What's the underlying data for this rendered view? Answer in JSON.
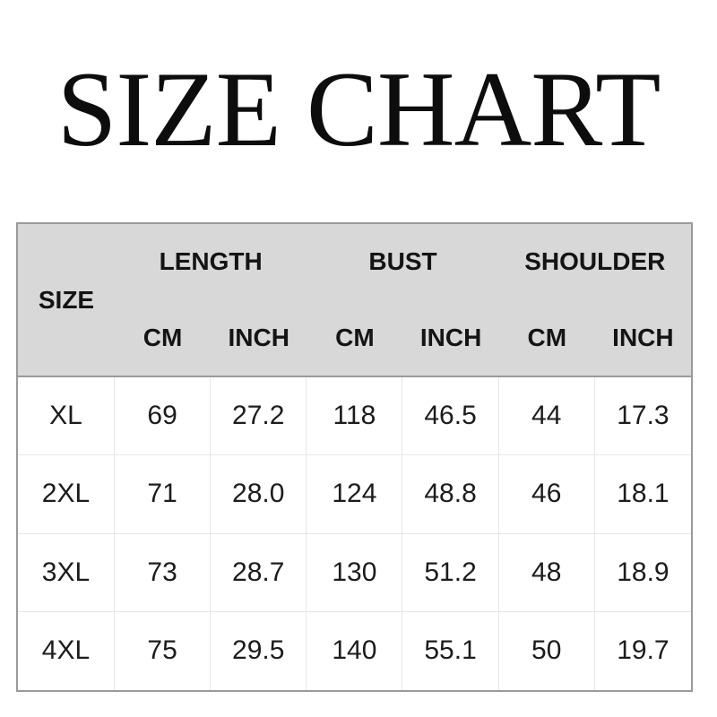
{
  "title": "SIZE CHART",
  "colors": {
    "header_bg": "#d8d8d8",
    "outer_border": "#9a9a9a",
    "inner_border": "#e7e7e7",
    "text": "#141414"
  },
  "table": {
    "size_label": "SIZE",
    "groups": [
      {
        "label": "LENGTH"
      },
      {
        "label": "BUST"
      },
      {
        "label": "SHOULDER"
      }
    ],
    "unit_headers": [
      "CM",
      "INCH",
      "CM",
      "INCH",
      "CM",
      "INCH"
    ],
    "rows": [
      {
        "size": "XL",
        "values": [
          "69",
          "27.2",
          "118",
          "46.5",
          "44",
          "17.3"
        ]
      },
      {
        "size": "2XL",
        "values": [
          "71",
          "28.0",
          "124",
          "48.8",
          "46",
          "18.1"
        ]
      },
      {
        "size": "3XL",
        "values": [
          "73",
          "28.7",
          "130",
          "51.2",
          "48",
          "18.9"
        ]
      },
      {
        "size": "4XL",
        "values": [
          "75",
          "29.5",
          "140",
          "55.1",
          "50",
          "19.7"
        ]
      }
    ]
  }
}
